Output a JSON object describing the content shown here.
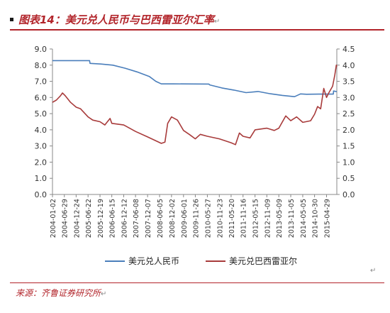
{
  "title": "图表14：美元兑人民币与巴西雷亚尔汇率",
  "source": "来源：齐鲁证券研究所",
  "chart_data": {
    "type": "line",
    "title": "图表14：美元兑人民币与巴西雷亚尔汇率",
    "xlabel": "",
    "ylabel_left": "",
    "ylabel_right": "",
    "left_axis": {
      "min": 0.0,
      "max": 9.0,
      "ticks": [
        "0.0",
        "1.0",
        "2.0",
        "3.0",
        "4.0",
        "5.0",
        "6.0",
        "7.0",
        "8.0",
        "9.0"
      ]
    },
    "right_axis": {
      "min": 0.0,
      "max": 4.5,
      "ticks": [
        "0.0",
        "0.5",
        "1.0",
        "1.5",
        "2.0",
        "2.5",
        "3.0",
        "3.5",
        "4.0",
        "4.5"
      ]
    },
    "x_ticks": [
      "2004-01-02",
      "2004-06-29",
      "2004-12-24",
      "2005-06-22",
      "2005-12-19",
      "2006-06-15",
      "2006-12-12",
      "2007-06-08",
      "2007-12-07",
      "2008-06-05",
      "2008-12-02",
      "2009-06-01",
      "2009-11-26",
      "2010-05-27",
      "2010-11-23",
      "2011-05-20",
      "2011-11-16",
      "2012-05-15",
      "2012-11-09",
      "2013-05-09",
      "2013-11-05",
      "2014-05-05",
      "2014-10-30",
      "2015-04-29"
    ],
    "grid": false,
    "legend_position": "bottom",
    "series": [
      {
        "name": "美元兑人民币",
        "axis": "left",
        "color": "#4a7ebb",
        "points": [
          [
            "2004-01-02",
            8.28
          ],
          [
            "2005-07-15",
            8.28
          ],
          [
            "2005-07-22",
            8.11
          ],
          [
            "2006-01-01",
            8.07
          ],
          [
            "2006-07-01",
            8.0
          ],
          [
            "2007-01-01",
            7.81
          ],
          [
            "2007-07-01",
            7.58
          ],
          [
            "2008-01-01",
            7.3
          ],
          [
            "2008-04-10",
            7.0
          ],
          [
            "2008-07-01",
            6.84
          ],
          [
            "2009-01-01",
            6.84
          ],
          [
            "2010-06-18",
            6.83
          ],
          [
            "2010-07-01",
            6.78
          ],
          [
            "2011-01-01",
            6.59
          ],
          [
            "2011-07-01",
            6.46
          ],
          [
            "2012-01-01",
            6.3
          ],
          [
            "2012-07-01",
            6.37
          ],
          [
            "2013-01-01",
            6.23
          ],
          [
            "2013-07-01",
            6.13
          ],
          [
            "2014-01-01",
            6.05
          ],
          [
            "2014-04-01",
            6.22
          ],
          [
            "2014-07-01",
            6.2
          ],
          [
            "2015-01-01",
            6.21
          ],
          [
            "2015-08-10",
            6.21
          ],
          [
            "2015-08-13",
            6.4
          ],
          [
            "2015-10-01",
            6.36
          ]
        ]
      },
      {
        "name": "美元兑巴西雷亚尔",
        "axis": "right",
        "color": "#a83b3b",
        "points": [
          [
            "2004-01-02",
            2.85
          ],
          [
            "2004-03-01",
            2.92
          ],
          [
            "2004-05-01",
            3.05
          ],
          [
            "2004-06-01",
            3.14
          ],
          [
            "2004-07-15",
            3.05
          ],
          [
            "2004-10-01",
            2.85
          ],
          [
            "2004-12-24",
            2.7
          ],
          [
            "2005-03-01",
            2.65
          ],
          [
            "2005-06-22",
            2.4
          ],
          [
            "2005-09-01",
            2.3
          ],
          [
            "2005-12-19",
            2.25
          ],
          [
            "2006-03-01",
            2.15
          ],
          [
            "2006-05-20",
            2.35
          ],
          [
            "2006-06-15",
            2.2
          ],
          [
            "2006-12-12",
            2.15
          ],
          [
            "2007-06-08",
            1.95
          ],
          [
            "2007-12-07",
            1.78
          ],
          [
            "2008-03-01",
            1.7
          ],
          [
            "2008-07-01",
            1.58
          ],
          [
            "2008-08-25",
            1.62
          ],
          [
            "2008-10-05",
            2.2
          ],
          [
            "2008-12-02",
            2.4
          ],
          [
            "2009-03-01",
            2.3
          ],
          [
            "2009-06-01",
            1.98
          ],
          [
            "2009-09-01",
            1.85
          ],
          [
            "2009-11-26",
            1.72
          ],
          [
            "2010-02-10",
            1.86
          ],
          [
            "2010-05-27",
            1.8
          ],
          [
            "2010-11-23",
            1.72
          ],
          [
            "2011-05-20",
            1.6
          ],
          [
            "2011-07-25",
            1.54
          ],
          [
            "2011-09-22",
            1.9
          ],
          [
            "2011-11-16",
            1.8
          ],
          [
            "2012-03-01",
            1.75
          ],
          [
            "2012-05-15",
            2.0
          ],
          [
            "2012-11-09",
            2.05
          ],
          [
            "2013-03-01",
            1.98
          ],
          [
            "2013-05-09",
            2.05
          ],
          [
            "2013-08-22",
            2.43
          ],
          [
            "2013-11-05",
            2.28
          ],
          [
            "2014-02-01",
            2.4
          ],
          [
            "2014-05-05",
            2.23
          ],
          [
            "2014-09-01",
            2.28
          ],
          [
            "2014-10-30",
            2.48
          ],
          [
            "2014-12-15",
            2.72
          ],
          [
            "2015-01-30",
            2.65
          ],
          [
            "2015-03-18",
            3.28
          ],
          [
            "2015-04-29",
            3.0
          ],
          [
            "2015-06-01",
            3.14
          ],
          [
            "2015-07-30",
            3.35
          ],
          [
            "2015-09-01",
            3.7
          ],
          [
            "2015-09-23",
            4.0
          ],
          [
            "2015-10-01",
            3.95
          ]
        ]
      }
    ]
  }
}
